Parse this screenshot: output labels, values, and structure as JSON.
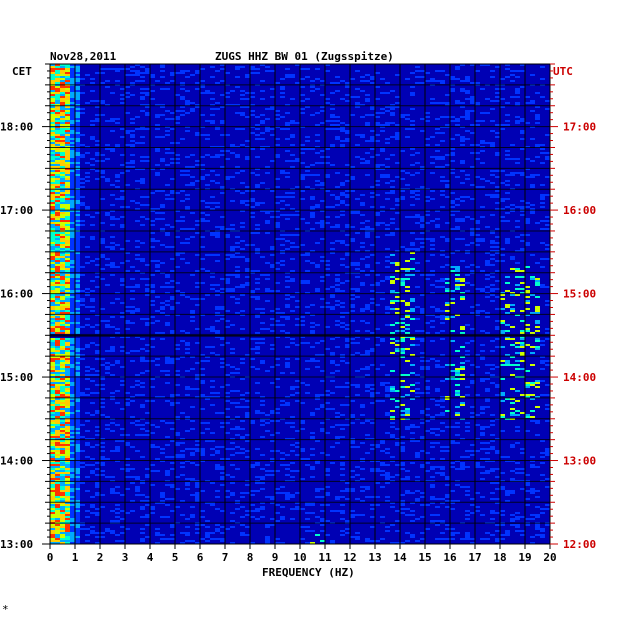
{
  "header": {
    "date": "Nov28,2011",
    "station": "ZUGS HHZ BW 01 (Zugsspitze)",
    "left_tz": "CET",
    "right_tz": "UTC"
  },
  "footer_mark": "*",
  "colors": {
    "background": "#0000b4",
    "grid": "#000000",
    "utc_text": "#cc0000",
    "text": "#000000"
  },
  "chart_data": {
    "type": "heatmap",
    "title": "ZUGS HHZ BW 01 (Zugsspitze)",
    "xlabel": "FREQUENCY (HZ)",
    "xlim": [
      0,
      20
    ],
    "x_ticks": [
      "0",
      "1",
      "2",
      "3",
      "4",
      "5",
      "6",
      "7",
      "8",
      "9",
      "10",
      "11",
      "12",
      "13",
      "14",
      "15",
      "16",
      "17",
      "18",
      "19",
      "20"
    ],
    "left_axis_ticks": [
      "13:00",
      "14:00",
      "15:00",
      "16:00",
      "17:00",
      "18:00"
    ],
    "right_axis_ticks": [
      "12:00",
      "13:00",
      "14:00",
      "15:00",
      "16:00",
      "17:00"
    ],
    "time_range_cet": [
      "13:00",
      "18:45"
    ],
    "colormap": [
      "#0000b4",
      "#0033ff",
      "#00aaff",
      "#00ffcc",
      "#ccff00",
      "#ffcc00",
      "#ff3300",
      "#cc0000"
    ],
    "features": [
      {
        "freq": [
          0.1,
          0.6
        ],
        "intensity": "high",
        "extent": "all times"
      },
      {
        "freq": [
          13.5,
          14.5
        ],
        "intensity": "medium",
        "time_cet": [
          "14:30",
          "16:30"
        ]
      },
      {
        "freq": [
          15.8,
          16.5
        ],
        "intensity": "medium",
        "time_cet": [
          "14:30",
          "16:20"
        ]
      },
      {
        "freq": [
          18.0,
          19.5
        ],
        "intensity": "medium",
        "time_cet": [
          "14:30",
          "16:20"
        ]
      },
      {
        "freq": [
          10.3,
          10.8
        ],
        "intensity": "medium",
        "time_cet": [
          "13:00",
          "13:10"
        ]
      },
      {
        "freq": [
          0.0,
          1.0
        ],
        "intensity": "dark band",
        "time_cet": [
          "15:29",
          "15:31"
        ]
      }
    ]
  }
}
